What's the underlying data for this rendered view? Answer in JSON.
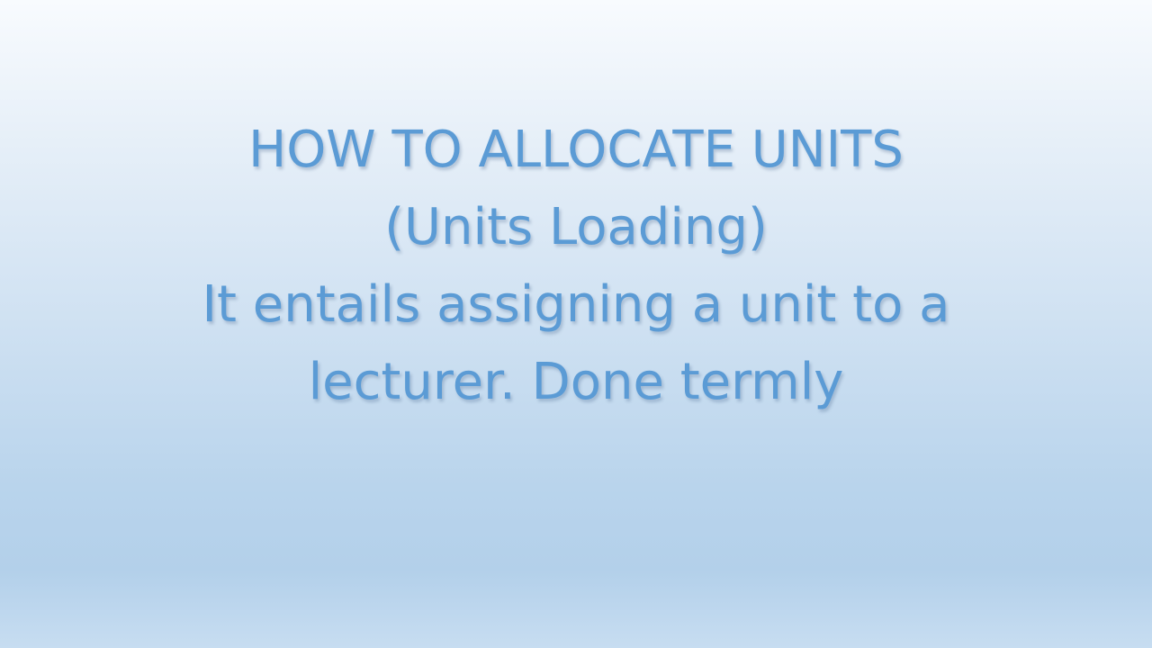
{
  "slide": {
    "lines": [
      "HOW TO ALLOCATE UNITS",
      "(Units Loading)",
      "It entails assigning a unit to a",
      "lecturer. Done termly"
    ],
    "text_color": "#5b9bd5",
    "background_top_color": "#f8fbfe",
    "background_bottom_color": "#b3d0ea"
  }
}
